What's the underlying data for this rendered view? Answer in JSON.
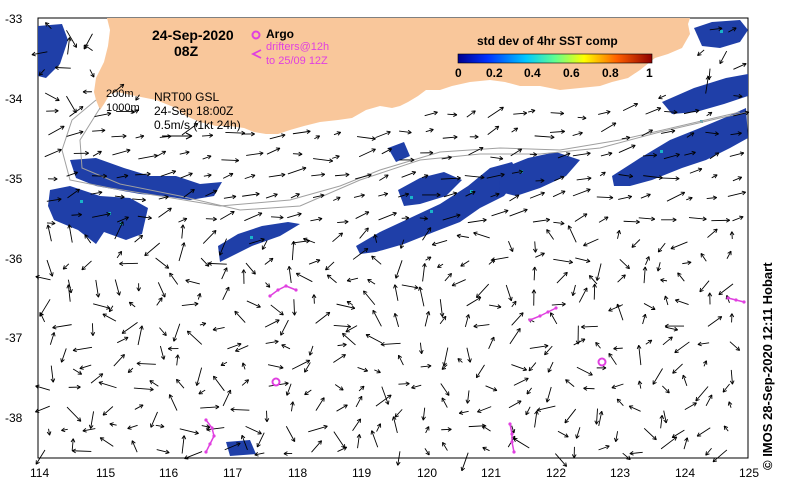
{
  "map": {
    "lon_range": [
      114,
      125
    ],
    "lat_range": [
      -38.5,
      -33
    ],
    "x_ticks": [
      "114",
      "115",
      "116",
      "117",
      "118",
      "119",
      "120",
      "121",
      "122",
      "123",
      "124",
      "125"
    ],
    "y_ticks": [
      "-33",
      "-34",
      "-35",
      "-36",
      "-37",
      "-38"
    ],
    "land_color": "#f9c79b",
    "sst_patch_color": "#1f3fa8",
    "sst_patch_color_light": "#19b4c9",
    "drifter_color": "#e040e0"
  },
  "header": {
    "date": "24-Sep-2020",
    "time": "08Z"
  },
  "legend": {
    "argo_label": "Argo",
    "drifters_label": "drifters@12h",
    "drifters_range": "to 25/09 12Z",
    "argo_icon": "circle-marker-icon",
    "drifter_icon": "chevron-marker-icon"
  },
  "info": {
    "depth_200": "200m",
    "depth_1000": "1000m",
    "product": "NRT00 GSL",
    "product_time": "24-Sep 18:00Z",
    "scale_label": "0.5m/s (1kt 24h)"
  },
  "colorbar": {
    "title": "std dev of 4hr SST comp",
    "ticks": [
      "0",
      "0.2",
      "0.4",
      "0.6",
      "0.8",
      "1"
    ]
  },
  "credit": "© IMOS 28-Sep-2020 12:11 Hobart"
}
